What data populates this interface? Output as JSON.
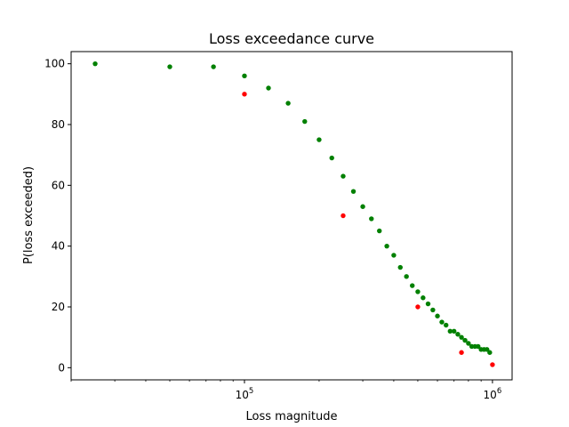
{
  "chart_data": {
    "type": "scatter",
    "title": "Loss exceedance curve",
    "xlabel": "Loss magnitude",
    "ylabel": "P(loss exceeded)",
    "xscale": "log",
    "xlim": [
      20000,
      1200000
    ],
    "ylim": [
      -4,
      104
    ],
    "xticks": [
      {
        "value": 100000,
        "base": "10",
        "exp": "5"
      },
      {
        "value": 1000000,
        "base": "10",
        "exp": "6"
      }
    ],
    "yticks": [
      0,
      20,
      40,
      60,
      80,
      100
    ],
    "grid": false,
    "series": [
      {
        "color": "#008000",
        "x": [
          25000,
          50000,
          75000,
          100000,
          125000,
          150000,
          175000,
          200000,
          225000,
          250000,
          275000,
          300000,
          325000,
          350000,
          375000,
          400000,
          425000,
          450000,
          475000,
          500000,
          525000,
          550000,
          575000,
          600000,
          625000,
          650000,
          675000,
          700000,
          725000,
          750000,
          775000,
          800000,
          825000,
          850000,
          875000,
          900000,
          925000,
          950000,
          975000
        ],
        "y": [
          100,
          99,
          99,
          96,
          92,
          87,
          81,
          75,
          69,
          63,
          58,
          53,
          49,
          45,
          40,
          37,
          33,
          30,
          27,
          25,
          23,
          21,
          19,
          17,
          15,
          14,
          12,
          12,
          11,
          10,
          9,
          8,
          7,
          7,
          7,
          6,
          6,
          6,
          5
        ]
      },
      {
        "color": "#ff0000",
        "x": [
          100000,
          250000,
          500000,
          750000,
          1000000
        ],
        "y": [
          90,
          50,
          20,
          5,
          1
        ]
      }
    ]
  }
}
